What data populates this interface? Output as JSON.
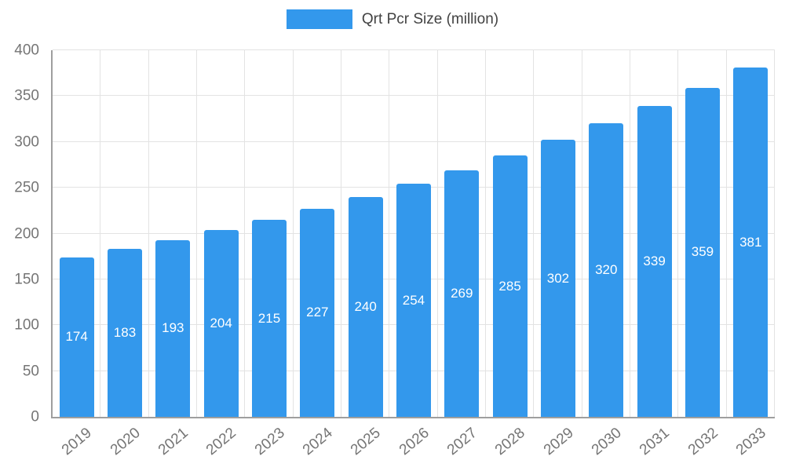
{
  "chart_data": {
    "type": "bar",
    "title": "Qrt Pcr Size (million)",
    "categories": [
      "2019",
      "2020",
      "2021",
      "2022",
      "2023",
      "2024",
      "2025",
      "2026",
      "2027",
      "2028",
      "2029",
      "2030",
      "2031",
      "2032",
      "2033"
    ],
    "values": [
      174,
      183,
      193,
      204,
      215,
      227,
      240,
      254,
      269,
      285,
      302,
      320,
      339,
      359,
      381
    ],
    "xlabel": "",
    "ylabel": "",
    "ylim": [
      0,
      400
    ],
    "yticks": [
      0,
      50,
      100,
      150,
      200,
      250,
      300,
      350,
      400
    ],
    "grid": true,
    "legend_position": "top",
    "bar_color": "#3398ec",
    "value_label_color": "#ffffff",
    "value_labels_inside_bars": true
  }
}
